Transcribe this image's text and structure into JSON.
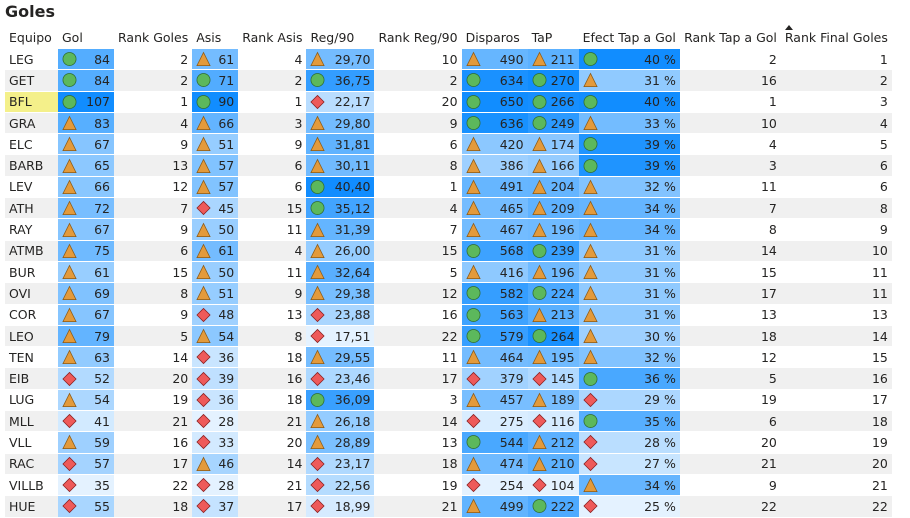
{
  "title": "Goles",
  "headers": [
    "Equipo",
    "Gol",
    "Rank Goles",
    "Asis",
    "Rank Asis",
    "Reg/90",
    "Rank Reg/90",
    "Disparos",
    "TaP",
    "Efect Tap a Gol",
    "Rank Tap a Gol",
    "Rank Final Goles"
  ],
  "sort": {
    "column": "Rank Final Goles",
    "direction": "ascending"
  },
  "highlighted_team": "BFL",
  "colors": {
    "circle": "#5cb85c",
    "triangle": "#e39a3b",
    "diamond": "#ee5a5a",
    "bar_dark": "#118DFF",
    "bar_light": "#e4f2ff",
    "highlight": "#f4f08a"
  },
  "rows": [
    {
      "team": "LEG",
      "gol": "84",
      "gol_icon": "circle",
      "rank_goles": "2",
      "asis": "61",
      "asis_icon": "triangle",
      "rank_asis": "4",
      "reg": "29,70",
      "reg_icon": "triangle",
      "rank_reg": "10",
      "disparos": "490",
      "disparos_icon": "triangle",
      "tap": "211",
      "tap_icon": "triangle",
      "efect": "40 %",
      "efect_icon": "circle",
      "rank_tap": "2",
      "rank_final": "1"
    },
    {
      "team": "GET",
      "gol": "84",
      "gol_icon": "circle",
      "rank_goles": "2",
      "asis": "71",
      "asis_icon": "circle",
      "rank_asis": "2",
      "reg": "36,75",
      "reg_icon": "circle",
      "rank_reg": "2",
      "disparos": "634",
      "disparos_icon": "circle",
      "tap": "270",
      "tap_icon": "circle",
      "efect": "31 %",
      "efect_icon": "triangle",
      "rank_tap": "16",
      "rank_final": "2"
    },
    {
      "team": "BFL",
      "gol": "107",
      "gol_icon": "circle",
      "rank_goles": "1",
      "asis": "90",
      "asis_icon": "circle",
      "rank_asis": "1",
      "reg": "22,17",
      "reg_icon": "diamond",
      "rank_reg": "20",
      "disparos": "650",
      "disparos_icon": "circle",
      "tap": "266",
      "tap_icon": "circle",
      "efect": "40 %",
      "efect_icon": "circle",
      "rank_tap": "1",
      "rank_final": "3"
    },
    {
      "team": "GRA",
      "gol": "83",
      "gol_icon": "triangle",
      "rank_goles": "4",
      "asis": "66",
      "asis_icon": "triangle",
      "rank_asis": "3",
      "reg": "29,80",
      "reg_icon": "triangle",
      "rank_reg": "9",
      "disparos": "636",
      "disparos_icon": "circle",
      "tap": "249",
      "tap_icon": "circle",
      "efect": "33 %",
      "efect_icon": "triangle",
      "rank_tap": "10",
      "rank_final": "4"
    },
    {
      "team": "ELC",
      "gol": "67",
      "gol_icon": "triangle",
      "rank_goles": "9",
      "asis": "51",
      "asis_icon": "triangle",
      "rank_asis": "9",
      "reg": "31,81",
      "reg_icon": "triangle",
      "rank_reg": "6",
      "disparos": "420",
      "disparos_icon": "triangle",
      "tap": "174",
      "tap_icon": "triangle",
      "efect": "39 %",
      "efect_icon": "circle",
      "rank_tap": "4",
      "rank_final": "5"
    },
    {
      "team": "BARB",
      "gol": "65",
      "gol_icon": "triangle",
      "rank_goles": "13",
      "asis": "57",
      "asis_icon": "triangle",
      "rank_asis": "6",
      "reg": "30,11",
      "reg_icon": "triangle",
      "rank_reg": "8",
      "disparos": "386",
      "disparos_icon": "triangle",
      "tap": "166",
      "tap_icon": "triangle",
      "efect": "39 %",
      "efect_icon": "circle",
      "rank_tap": "3",
      "rank_final": "6"
    },
    {
      "team": "LEV",
      "gol": "66",
      "gol_icon": "triangle",
      "rank_goles": "12",
      "asis": "57",
      "asis_icon": "triangle",
      "rank_asis": "6",
      "reg": "40,40",
      "reg_icon": "circle",
      "rank_reg": "1",
      "disparos": "491",
      "disparos_icon": "triangle",
      "tap": "204",
      "tap_icon": "triangle",
      "efect": "32 %",
      "efect_icon": "triangle",
      "rank_tap": "11",
      "rank_final": "6"
    },
    {
      "team": "ATH",
      "gol": "72",
      "gol_icon": "triangle",
      "rank_goles": "7",
      "asis": "45",
      "asis_icon": "diamond",
      "rank_asis": "15",
      "reg": "35,12",
      "reg_icon": "circle",
      "rank_reg": "4",
      "disparos": "465",
      "disparos_icon": "triangle",
      "tap": "209",
      "tap_icon": "triangle",
      "efect": "34 %",
      "efect_icon": "triangle",
      "rank_tap": "7",
      "rank_final": "8"
    },
    {
      "team": "RAY",
      "gol": "67",
      "gol_icon": "triangle",
      "rank_goles": "9",
      "asis": "50",
      "asis_icon": "triangle",
      "rank_asis": "11",
      "reg": "31,39",
      "reg_icon": "triangle",
      "rank_reg": "7",
      "disparos": "467",
      "disparos_icon": "triangle",
      "tap": "196",
      "tap_icon": "triangle",
      "efect": "34 %",
      "efect_icon": "triangle",
      "rank_tap": "8",
      "rank_final": "9"
    },
    {
      "team": "ATMB",
      "gol": "75",
      "gol_icon": "triangle",
      "rank_goles": "6",
      "asis": "61",
      "asis_icon": "triangle",
      "rank_asis": "4",
      "reg": "26,00",
      "reg_icon": "triangle",
      "rank_reg": "15",
      "disparos": "568",
      "disparos_icon": "circle",
      "tap": "239",
      "tap_icon": "circle",
      "efect": "31 %",
      "efect_icon": "triangle",
      "rank_tap": "14",
      "rank_final": "10"
    },
    {
      "team": "BUR",
      "gol": "61",
      "gol_icon": "triangle",
      "rank_goles": "15",
      "asis": "50",
      "asis_icon": "triangle",
      "rank_asis": "11",
      "reg": "32,64",
      "reg_icon": "triangle",
      "rank_reg": "5",
      "disparos": "416",
      "disparos_icon": "triangle",
      "tap": "196",
      "tap_icon": "triangle",
      "efect": "31 %",
      "efect_icon": "triangle",
      "rank_tap": "15",
      "rank_final": "11"
    },
    {
      "team": "OVI",
      "gol": "69",
      "gol_icon": "triangle",
      "rank_goles": "8",
      "asis": "51",
      "asis_icon": "triangle",
      "rank_asis": "9",
      "reg": "29,38",
      "reg_icon": "triangle",
      "rank_reg": "12",
      "disparos": "582",
      "disparos_icon": "circle",
      "tap": "224",
      "tap_icon": "circle",
      "efect": "31 %",
      "efect_icon": "triangle",
      "rank_tap": "17",
      "rank_final": "11"
    },
    {
      "team": "COR",
      "gol": "67",
      "gol_icon": "triangle",
      "rank_goles": "9",
      "asis": "48",
      "asis_icon": "diamond",
      "rank_asis": "13",
      "reg": "23,88",
      "reg_icon": "diamond",
      "rank_reg": "16",
      "disparos": "563",
      "disparos_icon": "circle",
      "tap": "213",
      "tap_icon": "triangle",
      "efect": "31 %",
      "efect_icon": "triangle",
      "rank_tap": "13",
      "rank_final": "13"
    },
    {
      "team": "LEO",
      "gol": "79",
      "gol_icon": "triangle",
      "rank_goles": "5",
      "asis": "54",
      "asis_icon": "triangle",
      "rank_asis": "8",
      "reg": "17,51",
      "reg_icon": "diamond",
      "rank_reg": "22",
      "disparos": "579",
      "disparos_icon": "circle",
      "tap": "264",
      "tap_icon": "circle",
      "efect": "30 %",
      "efect_icon": "triangle",
      "rank_tap": "18",
      "rank_final": "14"
    },
    {
      "team": "TEN",
      "gol": "63",
      "gol_icon": "triangle",
      "rank_goles": "14",
      "asis": "36",
      "asis_icon": "diamond",
      "rank_asis": "18",
      "reg": "29,55",
      "reg_icon": "triangle",
      "rank_reg": "11",
      "disparos": "464",
      "disparos_icon": "triangle",
      "tap": "195",
      "tap_icon": "triangle",
      "efect": "32 %",
      "efect_icon": "triangle",
      "rank_tap": "12",
      "rank_final": "15"
    },
    {
      "team": "EIB",
      "gol": "52",
      "gol_icon": "diamond",
      "rank_goles": "20",
      "asis": "39",
      "asis_icon": "diamond",
      "rank_asis": "16",
      "reg": "23,46",
      "reg_icon": "diamond",
      "rank_reg": "17",
      "disparos": "379",
      "disparos_icon": "diamond",
      "tap": "145",
      "tap_icon": "diamond",
      "efect": "36 %",
      "efect_icon": "circle",
      "rank_tap": "5",
      "rank_final": "16"
    },
    {
      "team": "LUG",
      "gol": "54",
      "gol_icon": "triangle",
      "rank_goles": "19",
      "asis": "36",
      "asis_icon": "diamond",
      "rank_asis": "18",
      "reg": "36,09",
      "reg_icon": "circle",
      "rank_reg": "3",
      "disparos": "457",
      "disparos_icon": "triangle",
      "tap": "189",
      "tap_icon": "triangle",
      "efect": "29 %",
      "efect_icon": "diamond",
      "rank_tap": "19",
      "rank_final": "17"
    },
    {
      "team": "MLL",
      "gol": "41",
      "gol_icon": "diamond",
      "rank_goles": "21",
      "asis": "28",
      "asis_icon": "diamond",
      "rank_asis": "21",
      "reg": "26,18",
      "reg_icon": "triangle",
      "rank_reg": "14",
      "disparos": "275",
      "disparos_icon": "diamond",
      "tap": "116",
      "tap_icon": "diamond",
      "efect": "35 %",
      "efect_icon": "circle",
      "rank_tap": "6",
      "rank_final": "18"
    },
    {
      "team": "VLL",
      "gol": "59",
      "gol_icon": "triangle",
      "rank_goles": "16",
      "asis": "33",
      "asis_icon": "diamond",
      "rank_asis": "20",
      "reg": "28,89",
      "reg_icon": "triangle",
      "rank_reg": "13",
      "disparos": "544",
      "disparos_icon": "circle",
      "tap": "212",
      "tap_icon": "triangle",
      "efect": "28 %",
      "efect_icon": "diamond",
      "rank_tap": "20",
      "rank_final": "19"
    },
    {
      "team": "RAC",
      "gol": "57",
      "gol_icon": "diamond",
      "rank_goles": "17",
      "asis": "46",
      "asis_icon": "triangle",
      "rank_asis": "14",
      "reg": "23,17",
      "reg_icon": "diamond",
      "rank_reg": "18",
      "disparos": "474",
      "disparos_icon": "triangle",
      "tap": "210",
      "tap_icon": "triangle",
      "efect": "27 %",
      "efect_icon": "diamond",
      "rank_tap": "21",
      "rank_final": "20"
    },
    {
      "team": "VILLB",
      "gol": "35",
      "gol_icon": "diamond",
      "rank_goles": "22",
      "asis": "28",
      "asis_icon": "diamond",
      "rank_asis": "21",
      "reg": "22,56",
      "reg_icon": "diamond",
      "rank_reg": "19",
      "disparos": "254",
      "disparos_icon": "diamond",
      "tap": "104",
      "tap_icon": "diamond",
      "efect": "34 %",
      "efect_icon": "triangle",
      "rank_tap": "9",
      "rank_final": "21"
    },
    {
      "team": "HUE",
      "gol": "55",
      "gol_icon": "diamond",
      "rank_goles": "18",
      "asis": "37",
      "asis_icon": "diamond",
      "rank_asis": "17",
      "reg": "18,99",
      "reg_icon": "diamond",
      "rank_reg": "21",
      "disparos": "499",
      "disparos_icon": "triangle",
      "tap": "222",
      "tap_icon": "circle",
      "efect": "25 %",
      "efect_icon": "diamond",
      "rank_tap": "22",
      "rank_final": "22"
    }
  ]
}
